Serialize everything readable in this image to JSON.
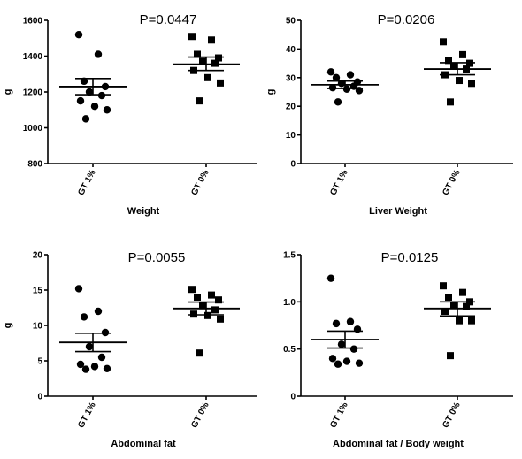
{
  "chart_data": [
    {
      "type": "scatter",
      "title": "P=0.0447",
      "xlabel": "Weight",
      "ylabel": "g",
      "ylim": [
        800,
        1600
      ],
      "yticks": [
        "800",
        "1000",
        "1200",
        "1400",
        "1600"
      ],
      "categories": [
        "GT 1%",
        "GT 0%"
      ],
      "series": [
        {
          "name": "GT 1%",
          "marker": "circle",
          "values": [
            1520,
            1410,
            1260,
            1230,
            1200,
            1180,
            1150,
            1120,
            1100,
            1050
          ],
          "mean": 1230,
          "sem_low": 1185,
          "sem_high": 1275
        },
        {
          "name": "GT 0%",
          "marker": "square",
          "values": [
            1510,
            1490,
            1410,
            1390,
            1370,
            1360,
            1320,
            1280,
            1250,
            1150
          ],
          "mean": 1355,
          "sem_low": 1320,
          "sem_high": 1395
        }
      ]
    },
    {
      "type": "scatter",
      "title": "P=0.0206",
      "xlabel": "Liver Weight",
      "ylabel": "g",
      "ylim": [
        0,
        50
      ],
      "yticks": [
        "0",
        "10",
        "20",
        "30",
        "40",
        "50"
      ],
      "categories": [
        "GT 1%",
        "GT 0%"
      ],
      "series": [
        {
          "name": "GT 1%",
          "marker": "circle",
          "values": [
            32,
            31,
            30,
            28.5,
            28,
            27,
            26.5,
            26,
            25.5,
            21.5
          ],
          "mean": 27.5,
          "sem_low": 26.2,
          "sem_high": 28.8
        },
        {
          "name": "GT 0%",
          "marker": "square",
          "values": [
            42.5,
            38,
            36,
            35,
            34,
            33,
            31,
            29,
            28,
            21.5
          ],
          "mean": 33.0,
          "sem_low": 31.0,
          "sem_high": 35.2
        }
      ]
    },
    {
      "type": "scatter",
      "title": "P=0.0055",
      "xlabel": "Abdominal fat",
      "ylabel": "g",
      "ylim": [
        0,
        20
      ],
      "yticks": [
        "0",
        "5",
        "10",
        "15",
        "20"
      ],
      "categories": [
        "GT 1%",
        "GT 0%"
      ],
      "series": [
        {
          "name": "GT 1%",
          "marker": "circle",
          "values": [
            15.2,
            12,
            11.2,
            9,
            7,
            5.5,
            4.5,
            4.2,
            3.9,
            3.8
          ],
          "mean": 7.6,
          "sem_low": 6.3,
          "sem_high": 8.9
        },
        {
          "name": "GT 0%",
          "marker": "square",
          "values": [
            15.1,
            14.3,
            14,
            13.6,
            12.8,
            12.2,
            11.6,
            11.4,
            10.9,
            6.1
          ],
          "mean": 12.4,
          "sem_low": 11.5,
          "sem_high": 13.3
        }
      ]
    },
    {
      "type": "scatter",
      "title": "P=0.0125",
      "xlabel": "Abdominal fat / Body weight",
      "ylabel": "",
      "ylim": [
        0,
        1.5
      ],
      "yticks": [
        "0",
        "0.5",
        "1.0",
        "1.5"
      ],
      "categories": [
        "GT 1%",
        "GT 0%"
      ],
      "series": [
        {
          "name": "GT 1%",
          "marker": "circle",
          "values": [
            1.25,
            0.79,
            0.77,
            0.71,
            0.55,
            0.5,
            0.4,
            0.37,
            0.35,
            0.34
          ],
          "mean": 0.6,
          "sem_low": 0.51,
          "sem_high": 0.69
        },
        {
          "name": "GT 0%",
          "marker": "square",
          "values": [
            1.17,
            1.1,
            1.05,
            1.0,
            0.97,
            0.95,
            0.9,
            0.8,
            0.8,
            0.43
          ],
          "mean": 0.93,
          "sem_low": 0.85,
          "sem_high": 1.0
        }
      ]
    }
  ]
}
